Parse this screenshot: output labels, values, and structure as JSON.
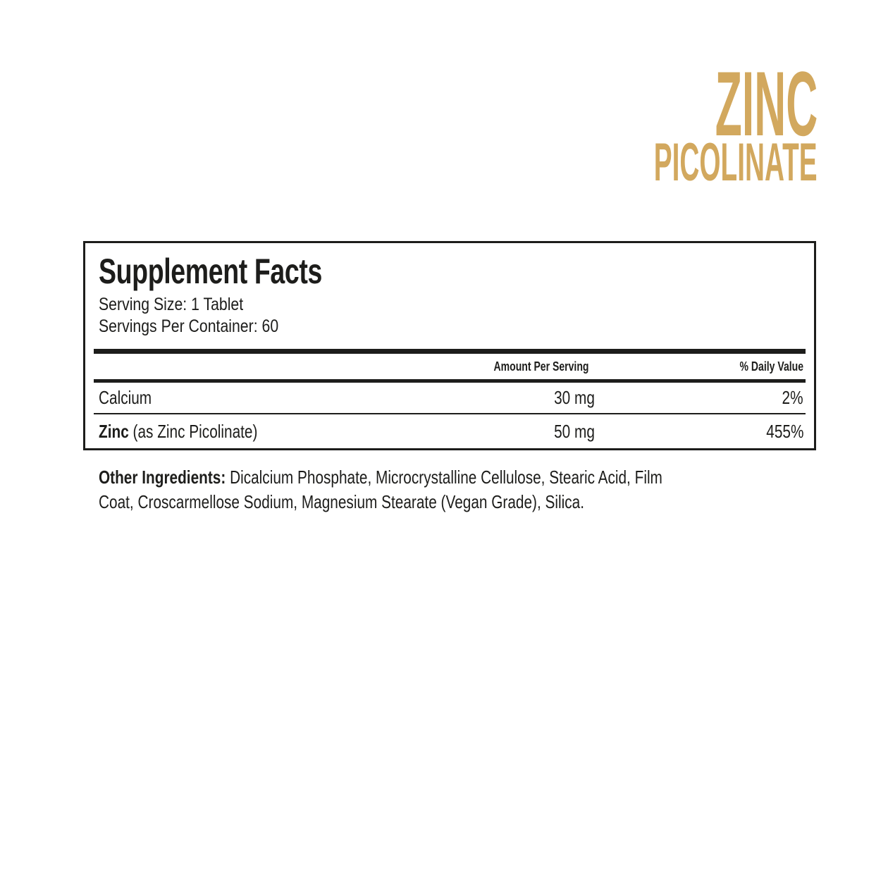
{
  "colors": {
    "gold": "#d2a85e",
    "ink": "#1d1d1b",
    "background": "#ffffff"
  },
  "brand": {
    "line1": "ZINC",
    "line2": "PICOLINATE"
  },
  "panel": {
    "title": "Supplement Facts",
    "serving_size": "Serving Size: 1 Tablet",
    "servings_per_container": "Servings Per Container: 60",
    "columns": {
      "amount": "Amount Per Serving",
      "daily_value": "% Daily Value"
    },
    "rows": [
      {
        "name": "Calcium",
        "detail": "",
        "amount": "30 mg",
        "daily_value": "2%"
      },
      {
        "name": "Zinc",
        "detail": "(as Zinc Picolinate)",
        "amount": "50 mg",
        "daily_value": "455%"
      }
    ]
  },
  "other_ingredients": {
    "label": "Other Ingredients:",
    "line1": "Dicalcium Phosphate, Microcrystalline Cellulose, Stearic Acid, Film",
    "line2": "Coat, Croscarmellose Sodium, Magnesium Stearate (Vegan Grade), Silica."
  }
}
